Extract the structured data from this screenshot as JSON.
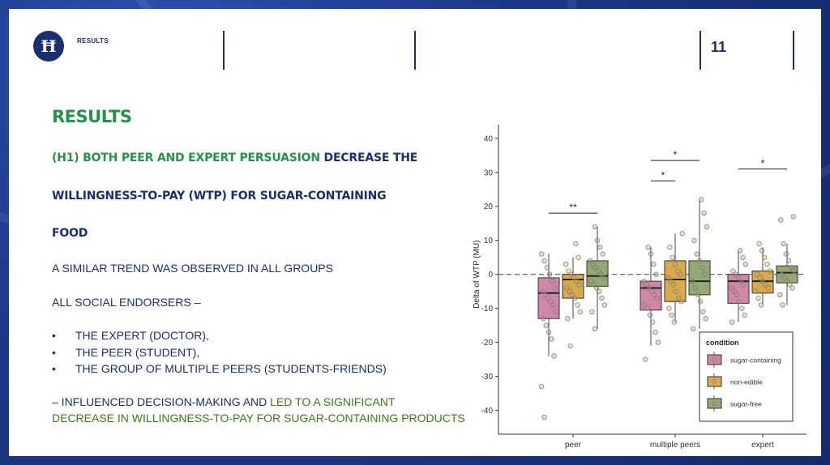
{
  "header": {
    "section_label": "RESULTS",
    "page_number": "11"
  },
  "content": {
    "title": "RESULTS",
    "hypothesis_part1": "(H1) BOTH PEER AND EXPERT PERSUASION",
    "hypothesis_part2": " DECREASE THE",
    "hypothesis_line2": "WILLINGNESS-TO-PAY (WTP) FOR SUGAR-CONTAINING",
    "hypothesis_line3": "FOOD",
    "trend_text": "A SIMILAR TREND WAS OBSERVED IN ALL GROUPS",
    "endorsers_text": "ALL SOCIAL ENDORSERS –",
    "bullets": [
      "THE EXPERT (DOCTOR),",
      "THE PEER (STUDENT),",
      "THE GROUP OF MULTIPLE PEERS (STUDENTS-FRIENDS)"
    ],
    "bullet_symbol": "•",
    "conclusion_part1": "– INFLUENCED DECISION-MAKING AND ",
    "conclusion_part2": "LED TO A SIGNIFICANT",
    "conclusion_line2": "DECREASE IN WILLINGNESS-TO-PAY FOR SUGAR-CONTAINING PRODUCTS"
  },
  "colors": {
    "navy": "#1b2f6e",
    "green": "#27914a",
    "olive": "#3d7a1a",
    "sugar_containing": "#d087a8",
    "non_edible": "#d9a94e",
    "sugar_free": "#93a873"
  },
  "chart_data": {
    "type": "boxplot",
    "ylabel": "Delta of WTP (MU)",
    "ylim": [
      -47,
      44
    ],
    "yticks": [
      40,
      30,
      20,
      10,
      0,
      -10,
      -20,
      -30,
      -40
    ],
    "categories": [
      "peer",
      "multiple peers",
      "expert"
    ],
    "reference_line": 0,
    "legend": {
      "title": "condition",
      "placement": "bottom-right",
      "entries": [
        "sugar-containing",
        "non-edible",
        "sugar-free"
      ]
    },
    "series": [
      {
        "name": "sugar-containing",
        "boxes": [
          {
            "q1": -13,
            "median": -5.5,
            "q3": -1,
            "whisker_low": -24,
            "whisker_high": 6
          },
          {
            "q1": -10.5,
            "median": -4,
            "q3": -2,
            "whisker_low": -21,
            "whisker_high": 8
          },
          {
            "q1": -8.5,
            "median": -2,
            "q3": 0,
            "whisker_low": -14,
            "whisker_high": 7
          }
        ],
        "points": [
          [
            6,
            4,
            2,
            0,
            -2,
            -4,
            -5,
            -6,
            -7,
            -8,
            -9,
            -11,
            -13,
            -15,
            -17,
            -19,
            -24,
            -33,
            -42
          ],
          [
            8,
            6,
            3,
            0,
            -2,
            -3,
            -4,
            -5,
            -6,
            -7,
            -9,
            -10,
            -12,
            -14,
            -17,
            -20,
            -25
          ],
          [
            7,
            5,
            3,
            1,
            0,
            -1,
            -2,
            -3,
            -4,
            -5,
            -6,
            -8,
            -10,
            -12,
            -14
          ]
        ]
      },
      {
        "name": "non-edible",
        "boxes": [
          {
            "q1": -7,
            "median": -1.5,
            "q3": 0,
            "whisker_low": -13,
            "whisker_high": 5
          },
          {
            "q1": -8,
            "median": -1.5,
            "q3": 4,
            "whisker_low": -14,
            "whisker_high": 12
          },
          {
            "q1": -5.5,
            "median": -2,
            "q3": 1,
            "whisker_low": -9,
            "whisker_high": 8
          }
        ],
        "points": [
          [
            9,
            5,
            3,
            1,
            0,
            -1,
            -2,
            -3,
            -4,
            -5,
            -6,
            -7,
            -9,
            -11,
            -13,
            -21
          ],
          [
            12,
            8,
            5,
            3,
            1,
            0,
            -1,
            -2,
            -3,
            -5,
            -7,
            -8,
            -10,
            -12,
            -14
          ],
          [
            9,
            7,
            5,
            3,
            1,
            0,
            -1,
            -2,
            -3,
            -4,
            -5,
            -7,
            -9
          ]
        ]
      },
      {
        "name": "sugar-free",
        "boxes": [
          {
            "q1": -3.5,
            "median": -0.5,
            "q3": 4,
            "whisker_low": -16,
            "whisker_high": 14
          },
          {
            "q1": -6,
            "median": -2,
            "q3": 4,
            "whisker_low": -16,
            "whisker_high": 22
          },
          {
            "q1": -2.5,
            "median": 0.5,
            "q3": 2.5,
            "whisker_low": -9,
            "whisker_high": 9
          }
        ],
        "points": [
          [
            14,
            10,
            8,
            6,
            4,
            3,
            2,
            1,
            0,
            -1,
            -2,
            -3,
            -4,
            -5,
            -7,
            -9,
            -11,
            -16
          ],
          [
            22,
            18,
            14,
            10,
            6,
            4,
            2,
            0,
            -2,
            -4,
            -6,
            -8,
            -11,
            -13,
            -16
          ],
          [
            17,
            16,
            9,
            6,
            4,
            2,
            1,
            0,
            -1,
            -2,
            -3,
            -4,
            -6,
            -9
          ]
        ]
      }
    ],
    "significance": [
      {
        "label": "**",
        "group": "peer",
        "from": "sugar-containing",
        "to": "sugar-free",
        "y": 18
      },
      {
        "label": "*",
        "group": "multiple peers",
        "from": "sugar-containing",
        "to": "non-edible",
        "y": 27.5
      },
      {
        "label": "*",
        "group": "multiple peers",
        "from": "sugar-containing",
        "to": "sugar-free",
        "y": 33.5
      },
      {
        "label": "*",
        "group": "expert",
        "from": "sugar-containing",
        "to": "sugar-free",
        "y": 31
      }
    ]
  }
}
